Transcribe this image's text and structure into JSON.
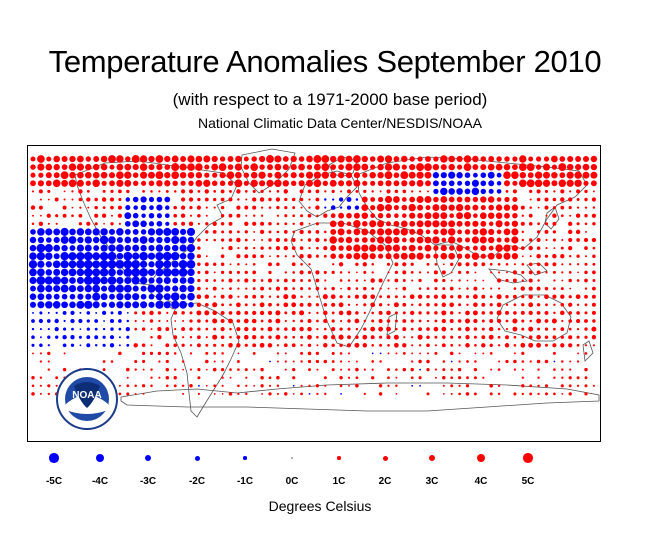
{
  "header": {
    "title": "Temperature Anomalies September 2010",
    "subtitle": "(with respect to a 1971-2000 base period)",
    "agency": "National Climatic Data Center/NESDIS/NOAA"
  },
  "logo": {
    "text": "NOAA",
    "icon": "noaa-logo-icon"
  },
  "legend": {
    "items": [
      {
        "label": "-5C",
        "value": -5
      },
      {
        "label": "-4C",
        "value": -4
      },
      {
        "label": "-3C",
        "value": -3
      },
      {
        "label": "-2C",
        "value": -2
      },
      {
        "label": "-1C",
        "value": -1
      },
      {
        "label": "0C",
        "value": 0
      },
      {
        "label": "1C",
        "value": 1
      },
      {
        "label": "2C",
        "value": 2
      },
      {
        "label": "3C",
        "value": 3
      },
      {
        "label": "4C",
        "value": 4
      },
      {
        "label": "5C",
        "value": 5
      }
    ],
    "units": "Degrees Celsius"
  },
  "colors": {
    "warm": "#ff0000",
    "cold": "#0000ff",
    "neutral": "#999999",
    "land": "#666666"
  }
}
